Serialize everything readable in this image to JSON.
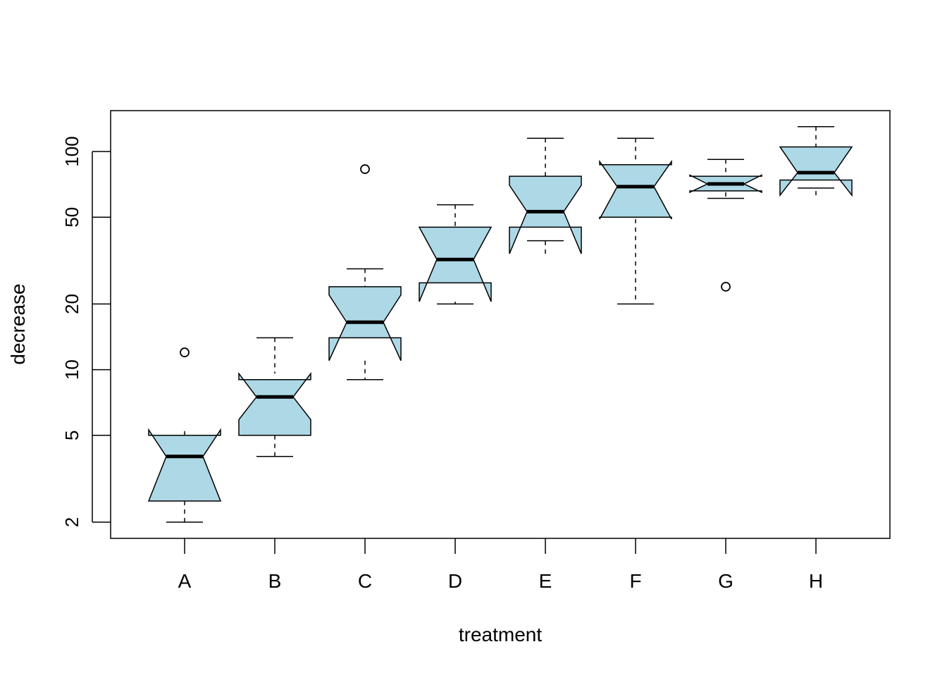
{
  "chart_data": {
    "type": "boxplot",
    "notched": true,
    "title": "",
    "xlabel": "treatment",
    "ylabel": "decrease",
    "y_scale": "log",
    "ylim": [
      1.8,
      140
    ],
    "y_ticks": [
      2,
      5,
      10,
      20,
      50,
      100
    ],
    "y_tick_labels": [
      "2",
      "5",
      "10",
      "20",
      "50",
      "100"
    ],
    "categories": [
      "A",
      "B",
      "C",
      "D",
      "E",
      "F",
      "G",
      "H"
    ],
    "box_fill": "#ADD8E6",
    "line_color": "#000000",
    "grid": false,
    "legend": "none",
    "boxes": [
      {
        "label": "A",
        "whisker_low": 2,
        "q1": 2.5,
        "median": 4,
        "q3": 5,
        "whisker_high": 5,
        "notch_low": 2.5,
        "notch_high": 5.3,
        "outliers": [
          12
        ]
      },
      {
        "label": "B",
        "whisker_low": 4,
        "q1": 5,
        "median": 7.5,
        "q3": 9,
        "whisker_high": 14,
        "notch_low": 5.9,
        "notch_high": 9.6,
        "outliers": []
      },
      {
        "label": "C",
        "whisker_low": 9,
        "q1": 14,
        "median": 16.5,
        "q3": 24,
        "whisker_high": 29,
        "notch_low": 11,
        "notch_high": 22,
        "outliers": [
          83
        ]
      },
      {
        "label": "D",
        "whisker_low": 20,
        "q1": 25,
        "median": 32,
        "q3": 45,
        "whisker_high": 57,
        "notch_low": 20.5,
        "notch_high": 45,
        "outliers": []
      },
      {
        "label": "E",
        "whisker_low": 39,
        "q1": 45,
        "median": 53,
        "q3": 77,
        "whisker_high": 115,
        "notch_low": 34,
        "notch_high": 70,
        "outliers": []
      },
      {
        "label": "F",
        "whisker_low": 20,
        "q1": 50,
        "median": 69,
        "q3": 87,
        "whisker_high": 115,
        "notch_low": 49,
        "notch_high": 90,
        "outliers": []
      },
      {
        "label": "G",
        "whisker_low": 61,
        "q1": 66,
        "median": 71,
        "q3": 77,
        "whisker_high": 92,
        "notch_low": 65,
        "notch_high": 78,
        "outliers": [
          24
        ]
      },
      {
        "label": "H",
        "whisker_low": 68,
        "q1": 74,
        "median": 80,
        "q3": 105,
        "whisker_high": 130,
        "notch_low": 63,
        "notch_high": 105,
        "outliers": []
      }
    ]
  }
}
